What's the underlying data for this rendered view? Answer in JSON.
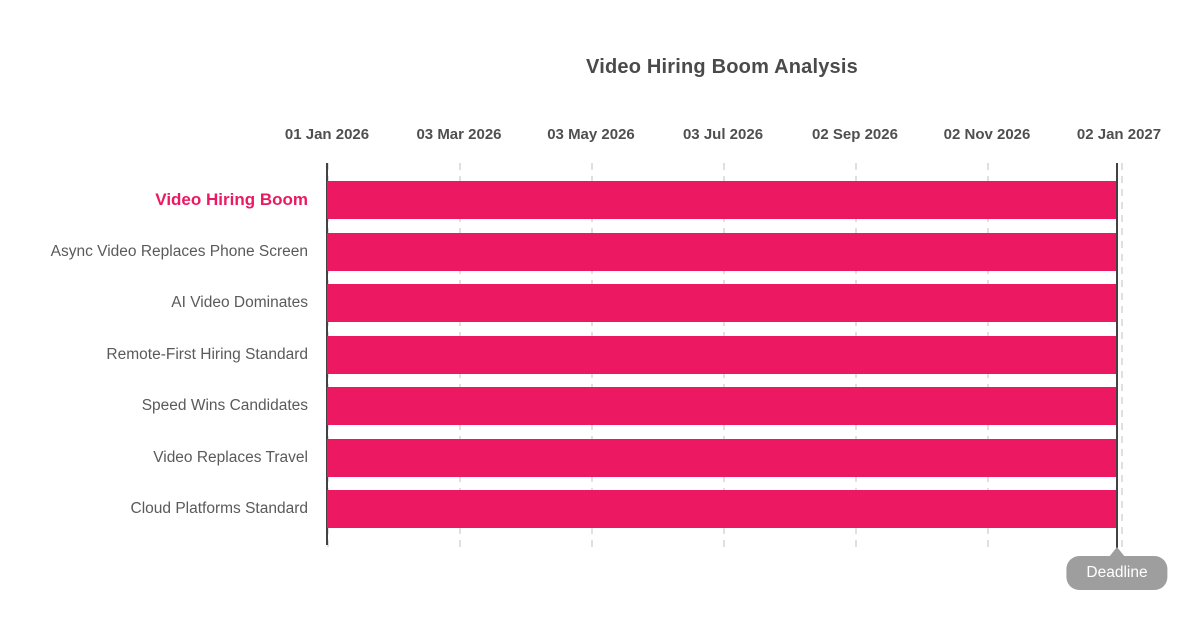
{
  "chart_data": {
    "type": "bar",
    "variant": "gantt",
    "title": "Video Hiring Boom Analysis",
    "x_tick_labels": [
      "01 Jan 2026",
      "03 Mar 2026",
      "03 May 2026",
      "03 Jul 2026",
      "02 Sep 2026",
      "02 Nov 2026",
      "02 Jan 2027"
    ],
    "x_range": [
      "01 Jan 2026",
      "02 Jan 2027"
    ],
    "grid": "dashed-vertical",
    "legend": "none",
    "rows": [
      {
        "label": "Video Hiring Boom",
        "start": "01 Jan 2026",
        "end": "02 Jan 2027",
        "highlighted": true
      },
      {
        "label": "Async Video Replaces Phone Screen",
        "start": "01 Jan 2026",
        "end": "02 Jan 2027",
        "highlighted": false
      },
      {
        "label": "AI Video Dominates",
        "start": "01 Jan 2026",
        "end": "02 Jan 2027",
        "highlighted": false
      },
      {
        "label": "Remote-First Hiring Standard",
        "start": "01 Jan 2026",
        "end": "02 Jan 2027",
        "highlighted": false
      },
      {
        "label": "Speed Wins Candidates",
        "start": "01 Jan 2026",
        "end": "02 Jan 2027",
        "highlighted": false
      },
      {
        "label": "Video Replaces Travel",
        "start": "01 Jan 2026",
        "end": "02 Jan 2027",
        "highlighted": false
      },
      {
        "label": "Cloud Platforms Standard",
        "start": "01 Jan 2026",
        "end": "02 Jan 2027",
        "highlighted": false
      }
    ],
    "deadline": {
      "label": "Deadline",
      "date": "02 Jan 2027"
    },
    "colors": {
      "bar": "#EC1962",
      "highlight_label": "#EC1962",
      "gridline": "#E0E0E0",
      "axis_line": "#424242",
      "deadline_line": "#424242",
      "tooltip_bg": "#9E9E9E",
      "tooltip_text": "#FFFFFF",
      "title_text": "#4A4A4A",
      "tick_text": "#4F4F4F",
      "row_label_text": "#5A5A5A",
      "background": "#FFFFFF"
    }
  }
}
